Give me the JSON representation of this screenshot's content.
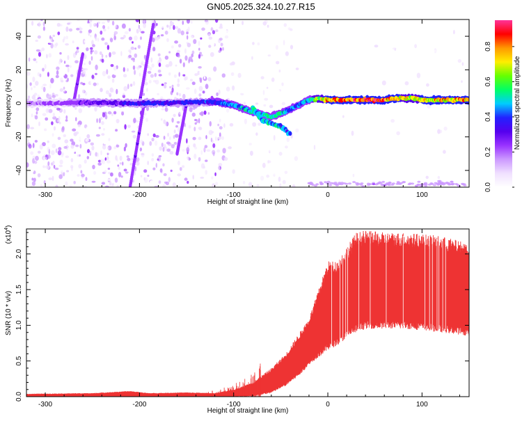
{
  "figure_title": "GN05.2025.324.10.27.R15",
  "chart_data": [
    {
      "type": "heatmap",
      "name": "spectrogram",
      "xlabel": "Height of straight line (km)",
      "ylabel": "Frequency (Hz)",
      "xlim": [
        -320,
        150
      ],
      "ylim": [
        -50,
        50
      ],
      "x_ticks": [
        -300,
        -200,
        -100,
        0,
        100
      ],
      "x_tick_labels": [
        "-300",
        "-200",
        "-100",
        "0",
        "100"
      ],
      "y_ticks": [
        -40,
        -20,
        0,
        20,
        40
      ],
      "y_tick_labels": [
        "-40",
        "-20",
        "0",
        "20",
        "40"
      ],
      "colorbar": {
        "label": "Normalized spectral amplitude",
        "range": [
          0,
          0.95
        ],
        "ticks": [
          0.0,
          0.2,
          0.4,
          0.6,
          0.8
        ],
        "tick_labels": [
          "0.0",
          "0.2",
          "0.4",
          "0.6",
          "0.8"
        ]
      },
      "ridge_line": {
        "description_x": [
          -320,
          -250,
          -200,
          -150,
          -120,
          -100,
          -80,
          -60,
          -45,
          -35,
          -20,
          -10,
          0,
          30,
          60,
          75,
          90,
          100,
          150
        ],
        "y": [
          0,
          0.5,
          0,
          0.5,
          1,
          -1,
          -5,
          -8,
          -5,
          -2,
          2,
          3,
          2,
          2,
          2,
          3,
          3,
          2,
          2
        ],
        "amplitude": [
          0.2,
          0.3,
          0.4,
          0.4,
          0.45,
          0.5,
          0.55,
          0.6,
          0.5,
          0.45,
          0.55,
          0.7,
          0.85,
          0.9,
          0.9,
          0.8,
          0.75,
          0.8,
          0.85
        ]
      },
      "streaks": [
        {
          "x0": -210,
          "y0": -50,
          "x1": -195,
          "y1": 0
        },
        {
          "x0": -200,
          "y0": 0,
          "x1": -185,
          "y1": 48
        },
        {
          "x0": -160,
          "y0": -30,
          "x1": -150,
          "y1": 0
        },
        {
          "x0": -270,
          "y0": 0,
          "x1": -260,
          "y1": 30
        }
      ]
    },
    {
      "type": "area",
      "name": "snr",
      "xlabel": "Height of straight line (km)",
      "ylabel": "SNR (10 * v/v)",
      "multiplier_label": "(x10",
      "multiplier_exp": "4",
      "multiplier_close": ")",
      "xlim": [
        -320,
        150
      ],
      "ylim": [
        0,
        2.35
      ],
      "x_ticks": [
        -300,
        -200,
        -100,
        0,
        100
      ],
      "x_tick_labels": [
        "-300",
        "-200",
        "-100",
        "0",
        "100"
      ],
      "y_ticks": [
        0.0,
        0.5,
        1.0,
        1.5,
        2.0
      ],
      "y_tick_labels": [
        "0.0",
        "0.5",
        "1.0",
        "1.5",
        "2.0"
      ],
      "color": "#ee3333",
      "envelope_x": [
        -320,
        -250,
        -210,
        -190,
        -150,
        -120,
        -100,
        -80,
        -60,
        -45,
        -30,
        -20,
        -10,
        0,
        10,
        20,
        30,
        40,
        60,
        80,
        100,
        120,
        150
      ],
      "upper": [
        0.04,
        0.05,
        0.08,
        0.05,
        0.06,
        0.05,
        0.1,
        0.2,
        0.4,
        0.6,
        0.9,
        1.1,
        1.5,
        1.9,
        1.9,
        2.1,
        2.3,
        2.33,
        2.3,
        2.3,
        2.28,
        2.25,
        2.15
      ],
      "lower": [
        0.0,
        0.0,
        0.0,
        0.0,
        0.0,
        0.0,
        0.0,
        0.0,
        0.05,
        0.15,
        0.3,
        0.45,
        0.55,
        0.65,
        0.72,
        0.82,
        0.9,
        0.95,
        0.95,
        0.95,
        0.93,
        0.9,
        0.85
      ]
    }
  ],
  "colors": {
    "colormap": [
      "#ffffff",
      "#f0e0ff",
      "#cc99ff",
      "#9933ff",
      "#5500ee",
      "#2222ff",
      "#00ccff",
      "#00ff66",
      "#66ff00",
      "#ffee00",
      "#ff9900",
      "#ff0000",
      "#ff3399"
    ]
  }
}
